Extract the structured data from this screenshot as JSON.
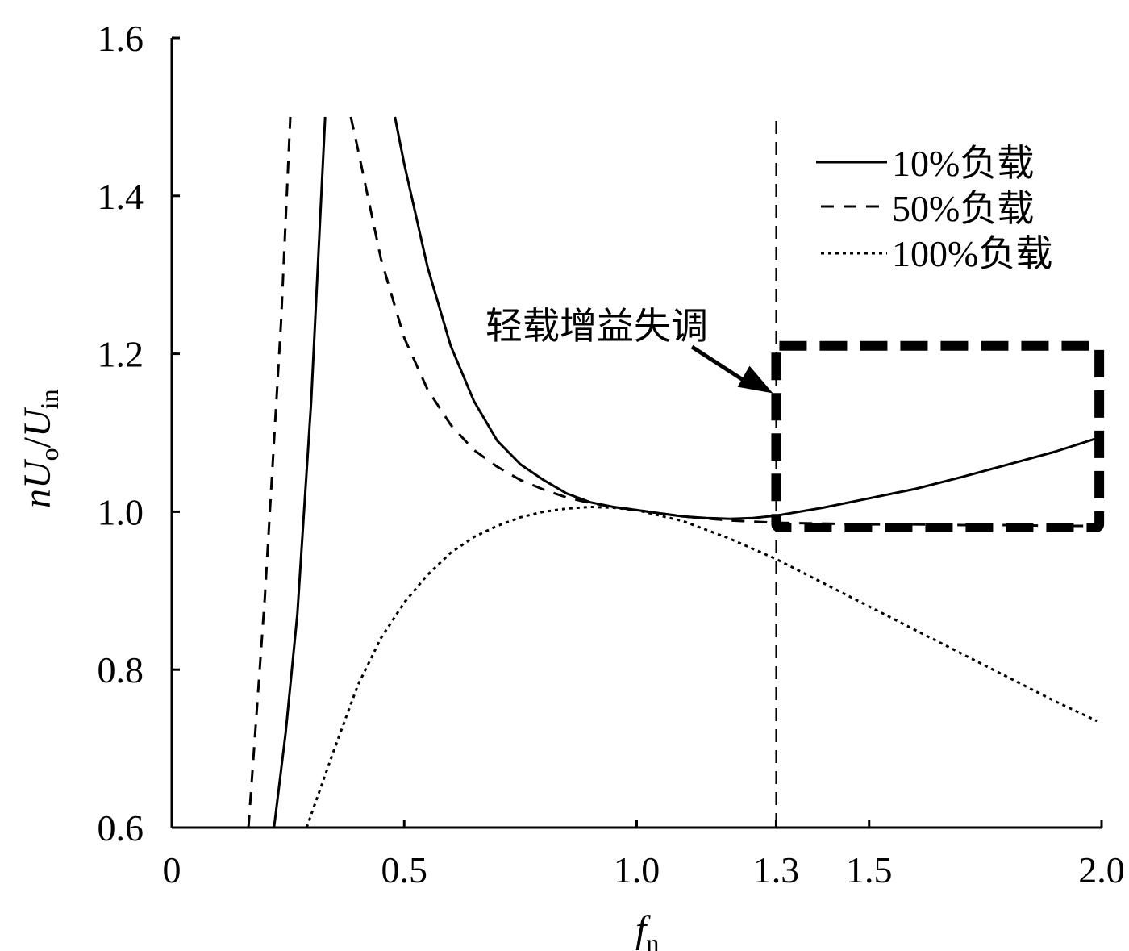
{
  "chart_data": {
    "type": "line",
    "xlabel": {
      "main": "f",
      "sub": "n"
    },
    "ylabel": {
      "prefix": "n",
      "u1": "U",
      "sub1": "o",
      "slash": "/",
      "u2": "U",
      "sub2": "in"
    },
    "xlim": [
      0,
      2.0
    ],
    "ylim": [
      0.6,
      1.6
    ],
    "x_ticks": [
      {
        "value": 0,
        "label": "0"
      },
      {
        "value": 0.5,
        "label": "0.5"
      },
      {
        "value": 1.0,
        "label": "1.0"
      },
      {
        "value": 1.3,
        "label": "1.3"
      },
      {
        "value": 1.5,
        "label": "1.5"
      },
      {
        "value": 2.0,
        "label": "2.0"
      }
    ],
    "y_ticks": [
      {
        "value": 0.6,
        "label": "0.6"
      },
      {
        "value": 0.8,
        "label": "0.8"
      },
      {
        "value": 1.0,
        "label": "1.0"
      },
      {
        "value": 1.2,
        "label": "1.2"
      },
      {
        "value": 1.4,
        "label": "1.4"
      },
      {
        "value": 1.6,
        "label": "1.6"
      }
    ],
    "grid": false,
    "legend_position": "top-right",
    "series": [
      {
        "name": "10%负载",
        "style": "solid",
        "segments": [
          {
            "x": [
              0.22,
              0.245,
              0.27,
              0.3,
              0.33
            ],
            "y": [
              0.6,
              0.72,
              0.87,
              1.14,
              1.5
            ]
          },
          {
            "x": [
              0.48,
              0.5,
              0.55,
              0.6,
              0.65,
              0.7,
              0.75,
              0.8,
              0.85,
              0.9,
              0.95,
              1.0,
              1.05,
              1.1,
              1.15,
              1.2,
              1.25,
              1.3,
              1.4,
              1.5,
              1.6,
              1.7,
              1.8,
              1.9,
              2.0
            ],
            "y": [
              1.5,
              1.44,
              1.31,
              1.21,
              1.14,
              1.09,
              1.06,
              1.04,
              1.023,
              1.012,
              1.006,
              1.002,
              0.998,
              0.994,
              0.992,
              0.991,
              0.992,
              0.995,
              1.005,
              1.017,
              1.029,
              1.044,
              1.06,
              1.076,
              1.095
            ]
          }
        ]
      },
      {
        "name": "50%负载",
        "style": "dashed",
        "segments": [
          {
            "x": [
              0.165,
              0.2,
              0.235,
              0.255
            ],
            "y": [
              0.6,
              0.89,
              1.24,
              1.5
            ]
          },
          {
            "x": [
              0.385,
              0.4,
              0.45,
              0.5,
              0.55,
              0.6,
              0.65,
              0.7,
              0.75,
              0.8,
              0.85,
              0.9,
              0.95,
              1.0,
              1.05,
              1.1,
              1.2,
              1.3,
              1.4,
              1.5,
              1.6,
              1.7,
              1.8,
              1.9,
              2.0
            ],
            "y": [
              1.5,
              1.46,
              1.32,
              1.22,
              1.155,
              1.11,
              1.078,
              1.057,
              1.04,
              1.028,
              1.018,
              1.011,
              1.006,
              1.002,
              0.998,
              0.994,
              0.989,
              0.986,
              0.985,
              0.984,
              0.984,
              0.983,
              0.983,
              0.982,
              0.982
            ]
          }
        ]
      },
      {
        "name": "100%负载",
        "style": "dotted",
        "segments": [
          {
            "x": [
              0.29,
              0.35,
              0.4,
              0.45,
              0.5,
              0.55,
              0.6,
              0.65,
              0.7,
              0.75,
              0.8,
              0.85,
              0.9,
              0.95,
              1.0,
              1.1,
              1.2,
              1.3,
              1.4,
              1.5,
              1.6,
              1.7,
              1.8,
              1.9,
              1.99
            ],
            "y": [
              0.6,
              0.7,
              0.78,
              0.84,
              0.885,
              0.92,
              0.948,
              0.968,
              0.982,
              0.993,
              1.0,
              1.004,
              1.006,
              1.005,
              1.002,
              0.988,
              0.966,
              0.94,
              0.91,
              0.88,
              0.85,
              0.82,
              0.79,
              0.76,
              0.735
            ]
          }
        ]
      }
    ],
    "vertical_line": {
      "x": 1.3,
      "style": "dashed"
    },
    "highlight_box": {
      "x": [
        1.3,
        1.995
      ],
      "y": [
        0.98,
        1.21
      ],
      "style": "thick-dashed"
    },
    "annotation": {
      "text": "轻载增益失调",
      "points_to": {
        "x": 1.3,
        "y": 1.15
      }
    }
  }
}
